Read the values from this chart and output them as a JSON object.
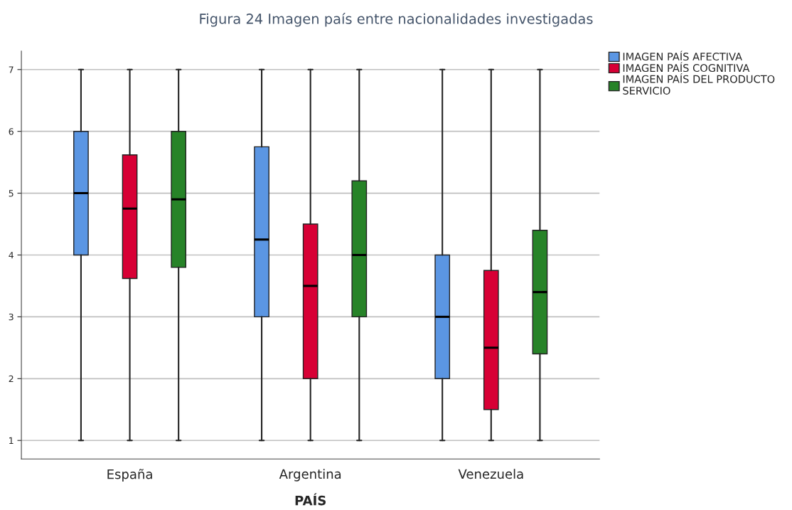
{
  "chart_data": {
    "type": "box",
    "title": "Figura 24 Imagen país entre nacionalidades investigadas",
    "xlabel": "PAÍS",
    "categories": [
      "España",
      "Argentina",
      "Venezuela"
    ],
    "series": [
      {
        "name": "IMAGEN PAÍS AFECTIVA",
        "color": "#5b96e3",
        "boxes": [
          {
            "low": 1,
            "q1": 4,
            "median": 5,
            "q3": 6,
            "high": 7
          },
          {
            "low": 1,
            "q1": 3,
            "median": 4.25,
            "q3": 5.75,
            "high": 7
          },
          {
            "low": 1,
            "q1": 2,
            "median": 3,
            "q3": 4,
            "high": 7
          }
        ]
      },
      {
        "name": "IMAGEN PAÍS COGNITIVA",
        "color": "#d70035",
        "boxes": [
          {
            "low": 1,
            "q1": 3.62,
            "median": 4.75,
            "q3": 5.62,
            "high": 7
          },
          {
            "low": 1,
            "q1": 2,
            "median": 3.5,
            "q3": 4.5,
            "high": 7
          },
          {
            "low": 1,
            "q1": 1.5,
            "median": 2.5,
            "q3": 3.75,
            "high": 7
          }
        ]
      },
      {
        "name": "IMAGEN PAÍS DEL PRODUCTO\nSERVICIO",
        "color": "#278328",
        "boxes": [
          {
            "low": 1,
            "q1": 3.8,
            "median": 4.9,
            "q3": 6,
            "high": 7
          },
          {
            "low": 1,
            "q1": 3,
            "median": 4,
            "q3": 5.2,
            "high": 7
          },
          {
            "low": 1,
            "q1": 2.4,
            "median": 3.4,
            "q3": 4.4,
            "high": 7
          }
        ]
      }
    ],
    "ylim": [
      0.7,
      7.3
    ],
    "yticks": [
      1,
      2,
      3,
      4,
      5,
      6,
      7
    ],
    "grid": "y",
    "legend": "top right"
  }
}
